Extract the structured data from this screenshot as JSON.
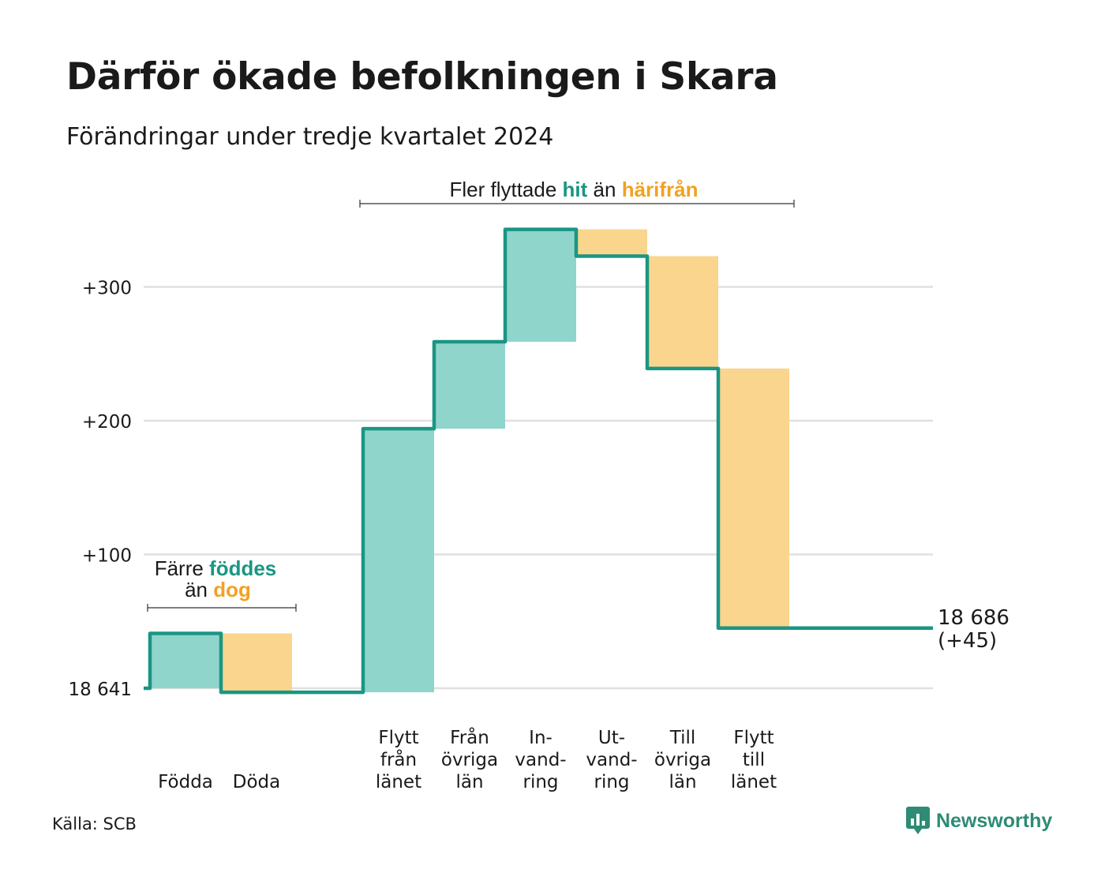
{
  "title": "Därför ökade befolkningen i Skara",
  "subtitle": "Förändringar under tredje kvartalet 2024",
  "source": "Källa: SCB",
  "brand": "Newsworthy",
  "colors": {
    "line": "#1a9683",
    "increase": "#8fd5cc",
    "decrease": "#fad58e",
    "hit": "#1a9683",
    "harifran": "#f2a122",
    "grid": "#e0e0e0"
  },
  "annotations": {
    "births": {
      "line1_pre": "Färre ",
      "line1_em": "föddes",
      "line2_pre": "än ",
      "line2_em": "dog"
    },
    "moves": {
      "pre": "Fler flyttade ",
      "em1": "hit",
      "mid": " än ",
      "em2": "härifrån"
    }
  },
  "chart_data": {
    "type": "waterfall",
    "baseline": 18641,
    "baseline_label": "18 641",
    "y_ticks": [
      {
        "value": 100,
        "label": "+100"
      },
      {
        "value": 200,
        "label": "+200"
      },
      {
        "value": 300,
        "label": "+300"
      }
    ],
    "ylim": [
      0,
      345
    ],
    "steps": [
      {
        "label": [
          "Födda"
        ],
        "change": 41,
        "kind": "increase"
      },
      {
        "label": [
          "Döda"
        ],
        "change": -44,
        "kind": "decrease"
      },
      {
        "label": [],
        "change": 0,
        "kind": "gap"
      },
      {
        "label": [
          "Flytt",
          "från",
          "länet"
        ],
        "change": 197,
        "kind": "increase"
      },
      {
        "label": [
          "Från",
          "övriga",
          "län"
        ],
        "change": 65,
        "kind": "increase"
      },
      {
        "label": [
          "In-",
          "vand-",
          "ring"
        ],
        "change": 84,
        "kind": "increase"
      },
      {
        "label": [
          "Ut-",
          "vand-",
          "ring"
        ],
        "change": -20,
        "kind": "decrease"
      },
      {
        "label": [
          "Till",
          "övriga",
          "län"
        ],
        "change": -84,
        "kind": "decrease"
      },
      {
        "label": [
          "Flytt",
          "till",
          "länet"
        ],
        "change": -194,
        "kind": "decrease"
      }
    ],
    "end_value": 18686,
    "end_label": "18 686",
    "end_change_label": "(+45)"
  }
}
